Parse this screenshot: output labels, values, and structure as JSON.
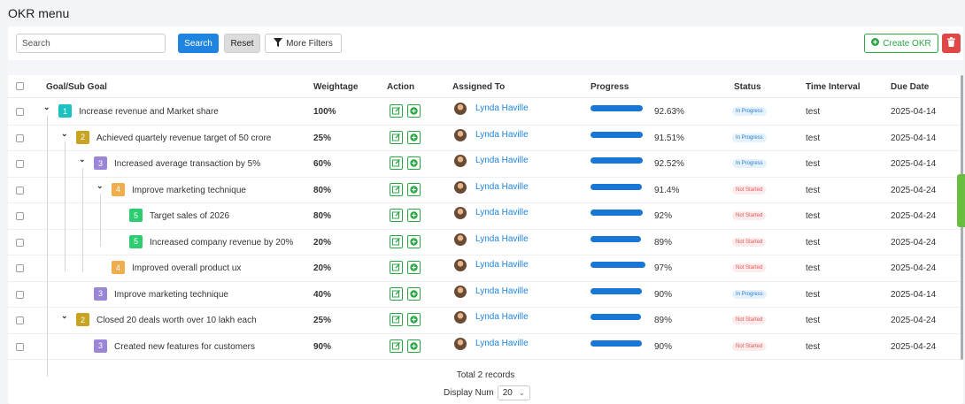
{
  "page": {
    "title": "OKR menu"
  },
  "toolbar": {
    "search_placeholder": "Search",
    "search_label": "Search",
    "reset_label": "Reset",
    "filters_label": "More Filters",
    "create_label": "Create OKR"
  },
  "columns": {
    "goal": "Goal/Sub Goal",
    "weightage": "Weightage",
    "action": "Action",
    "assigned": "Assigned To",
    "progress": "Progress",
    "status": "Status",
    "interval": "Time Interval",
    "due": "Due Date"
  },
  "colors": {
    "primary": "#1e84e0",
    "progress_bar": "#1877d6",
    "level_1": "#1cc2c2",
    "level_2": "#c9a322",
    "level_3": "#9a86d6",
    "level_4": "#f0ad4e",
    "level_5": "#2ecc71",
    "status_in_progress": "#2a7ed1",
    "status_not_started": "#e05b5b"
  },
  "rows": [
    {
      "level": "1",
      "goal": "Increase revenue and Market share",
      "weightage": "100%",
      "assignee": "Lynda Haville",
      "progress": 0.9263,
      "progress_text": "92.63%",
      "status": "In Progress",
      "interval": "test",
      "due": "2025-04-14"
    },
    {
      "level": "2",
      "goal": "Achieved quartely revenue target of 50 crore",
      "weightage": "25%",
      "assignee": "Lynda Haville",
      "progress": 0.9151,
      "progress_text": "91.51%",
      "status": "In Progress",
      "interval": "test",
      "due": "2025-04-14"
    },
    {
      "level": "3",
      "goal": "Increased average transaction by 5%",
      "weightage": "60%",
      "assignee": "Lynda Haville",
      "progress": 0.9252,
      "progress_text": "92.52%",
      "status": "In Progress",
      "interval": "test",
      "due": "2025-04-14"
    },
    {
      "level": "4",
      "goal": "Improve marketing technique",
      "weightage": "80%",
      "assignee": "Lynda Haville",
      "progress": 0.914,
      "progress_text": "91.4%",
      "status": "Not Started",
      "interval": "test",
      "due": "2025-04-24"
    },
    {
      "level": "5",
      "goal": "Target sales of 2026",
      "weightage": "80%",
      "assignee": "Lynda Haville",
      "progress": 0.92,
      "progress_text": "92%",
      "status": "Not Started",
      "interval": "test",
      "due": "2025-04-24"
    },
    {
      "level": "5",
      "goal": "Increased company revenue by 20%",
      "weightage": "20%",
      "assignee": "Lynda Haville",
      "progress": 0.89,
      "progress_text": "89%",
      "status": "Not Started",
      "interval": "test",
      "due": "2025-04-24"
    },
    {
      "level": "4",
      "goal": "Improved overall product ux",
      "weightage": "20%",
      "assignee": "Lynda Haville",
      "progress": 0.97,
      "progress_text": "97%",
      "status": "Not Started",
      "interval": "test",
      "due": "2025-04-24"
    },
    {
      "level": "3",
      "goal": "Improve marketing technique",
      "weightage": "40%",
      "assignee": "Lynda Haville",
      "progress": 0.9,
      "progress_text": "90%",
      "status": "In Progress",
      "interval": "test",
      "due": "2025-04-14"
    },
    {
      "level": "2",
      "goal": "Closed 20 deals worth over 10 lakh each",
      "weightage": "25%",
      "assignee": "Lynda Haville",
      "progress": 0.89,
      "progress_text": "89%",
      "status": "Not Started",
      "interval": "test",
      "due": "2025-04-24"
    },
    {
      "level": "3",
      "goal": "Created new features for customers",
      "weightage": "90%",
      "assignee": "Lynda Haville",
      "progress": 0.9,
      "progress_text": "90%",
      "status": "Not Started",
      "interval": "test",
      "due": "2025-04-24"
    }
  ],
  "footer": {
    "total": "Total 2 records",
    "display_label": "Display Num",
    "display_value": "20"
  }
}
